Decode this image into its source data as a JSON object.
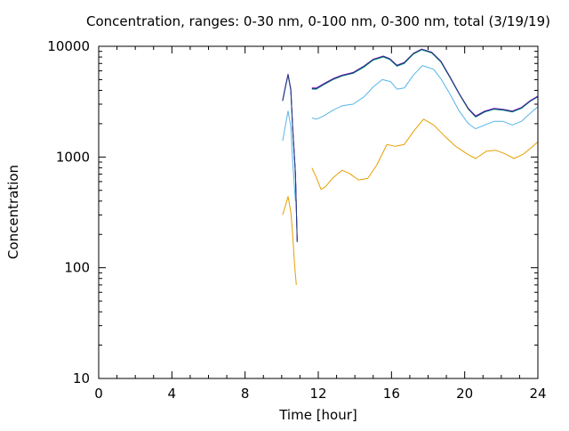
{
  "chart_data": {
    "type": "line",
    "title": "Concentration, ranges: 0-30 nm, 0-100 nm, 0-300 nm, total (3/19/19)",
    "xlabel": "Time [hour]",
    "ylabel": "Concentration",
    "xlim": [
      0,
      24
    ],
    "ylim": [
      10,
      10000
    ],
    "yscale": "log",
    "grid": false,
    "xticks": [
      0,
      4,
      8,
      12,
      16,
      20,
      24
    ],
    "xtick_labels": [
      "0",
      "4",
      "8",
      "12",
      "16",
      "20",
      "24"
    ],
    "yticks": [
      10,
      100,
      1000,
      10000
    ],
    "ytick_labels": [
      "10",
      "100",
      "1000",
      "10000"
    ],
    "series": [
      {
        "color": "#e69f00",
        "segments": [
          [
            [
              10.05,
              300
            ],
            [
              10.2,
              360
            ],
            [
              10.35,
              440
            ],
            [
              10.5,
              320
            ],
            [
              10.6,
              200
            ],
            [
              10.7,
              110
            ],
            [
              10.8,
              70
            ]
          ],
          [
            [
              11.65,
              800
            ],
            [
              11.9,
              650
            ],
            [
              12.15,
              510
            ],
            [
              12.4,
              540
            ],
            [
              12.8,
              650
            ],
            [
              13.3,
              760
            ],
            [
              13.7,
              710
            ],
            [
              14.2,
              620
            ],
            [
              14.7,
              640
            ],
            [
              15.2,
              850
            ],
            [
              15.75,
              1300
            ],
            [
              16.2,
              1250
            ],
            [
              16.7,
              1300
            ],
            [
              17.2,
              1700
            ],
            [
              17.75,
              2200
            ],
            [
              18.3,
              1950
            ],
            [
              18.9,
              1550
            ],
            [
              19.5,
              1250
            ],
            [
              20.2,
              1050
            ],
            [
              20.6,
              970
            ],
            [
              21.2,
              1130
            ],
            [
              21.7,
              1150
            ],
            [
              22.2,
              1070
            ],
            [
              22.7,
              970
            ],
            [
              23.2,
              1060
            ],
            [
              23.6,
              1200
            ],
            [
              24.0,
              1370
            ]
          ]
        ]
      },
      {
        "color": "#56b4e9",
        "segments": [
          [
            [
              10.05,
              1400
            ],
            [
              10.2,
              1900
            ],
            [
              10.35,
              2600
            ],
            [
              10.5,
              1900
            ],
            [
              10.6,
              900
            ],
            [
              10.75,
              400
            ]
          ],
          [
            [
              11.65,
              2250
            ],
            [
              11.9,
              2200
            ],
            [
              12.3,
              2350
            ],
            [
              12.8,
              2650
            ],
            [
              13.3,
              2900
            ],
            [
              13.9,
              3000
            ],
            [
              14.5,
              3500
            ],
            [
              15.0,
              4300
            ],
            [
              15.5,
              5000
            ],
            [
              15.95,
              4800
            ],
            [
              16.3,
              4100
            ],
            [
              16.7,
              4200
            ],
            [
              17.2,
              5500
            ],
            [
              17.7,
              6700
            ],
            [
              18.3,
              6200
            ],
            [
              18.7,
              5100
            ],
            [
              19.2,
              3700
            ],
            [
              19.7,
              2600
            ],
            [
              20.2,
              2000
            ],
            [
              20.6,
              1800
            ],
            [
              21.1,
              1950
            ],
            [
              21.6,
              2100
            ],
            [
              22.1,
              2100
            ],
            [
              22.6,
              1950
            ],
            [
              23.1,
              2100
            ],
            [
              23.6,
              2500
            ],
            [
              24.0,
              2850
            ]
          ]
        ]
      },
      {
        "color": "#009e73",
        "segments": [
          [
            [
              10.05,
              3200
            ],
            [
              10.2,
              4200
            ],
            [
              10.35,
              5500
            ],
            [
              10.5,
              4000
            ],
            [
              10.6,
              1800
            ],
            [
              10.75,
              700
            ],
            [
              10.85,
              170
            ]
          ],
          [
            [
              11.65,
              4100
            ],
            [
              11.9,
              4100
            ],
            [
              12.3,
              4500
            ],
            [
              12.8,
              5000
            ],
            [
              13.3,
              5400
            ],
            [
              13.9,
              5700
            ],
            [
              14.5,
              6500
            ],
            [
              15.0,
              7500
            ],
            [
              15.55,
              8000
            ],
            [
              15.9,
              7600
            ],
            [
              16.3,
              6600
            ],
            [
              16.7,
              7000
            ],
            [
              17.2,
              8500
            ],
            [
              17.65,
              9300
            ],
            [
              18.2,
              8700
            ],
            [
              18.7,
              7200
            ],
            [
              19.2,
              5200
            ],
            [
              19.7,
              3700
            ],
            [
              20.2,
              2700
            ],
            [
              20.6,
              2300
            ],
            [
              21.1,
              2550
            ],
            [
              21.6,
              2700
            ],
            [
              22.1,
              2650
            ],
            [
              22.6,
              2550
            ],
            [
              23.1,
              2750
            ],
            [
              23.6,
              3200
            ],
            [
              24.0,
              3500
            ]
          ]
        ]
      },
      {
        "color": "#9400d3",
        "segments": [
          [
            [
              10.05,
              3250
            ],
            [
              10.2,
              4300
            ],
            [
              10.35,
              5600
            ],
            [
              10.5,
              4100
            ],
            [
              10.6,
              1850
            ],
            [
              10.75,
              720
            ],
            [
              10.85,
              175
            ]
          ],
          [
            [
              11.65,
              4200
            ],
            [
              11.9,
              4200
            ],
            [
              12.3,
              4600
            ],
            [
              12.8,
              5100
            ],
            [
              13.3,
              5500
            ],
            [
              13.9,
              5800
            ],
            [
              14.5,
              6650
            ],
            [
              15.0,
              7650
            ],
            [
              15.55,
              8150
            ],
            [
              15.9,
              7750
            ],
            [
              16.3,
              6750
            ],
            [
              16.7,
              7150
            ],
            [
              17.2,
              8650
            ],
            [
              17.65,
              9450
            ],
            [
              18.2,
              8850
            ],
            [
              18.7,
              7350
            ],
            [
              19.2,
              5300
            ],
            [
              19.7,
              3750
            ],
            [
              20.2,
              2750
            ],
            [
              20.6,
              2350
            ],
            [
              21.1,
              2600
            ],
            [
              21.6,
              2750
            ],
            [
              22.1,
              2700
            ],
            [
              22.6,
              2600
            ],
            [
              23.1,
              2800
            ],
            [
              23.6,
              3250
            ],
            [
              24.0,
              3550
            ]
          ]
        ]
      },
      {
        "color": "#1f3f7f",
        "segments": [
          [
            [
              10.05,
              3220
            ],
            [
              10.2,
              4250
            ],
            [
              10.35,
              5550
            ],
            [
              10.5,
              4050
            ],
            [
              10.6,
              1820
            ],
            [
              10.75,
              710
            ],
            [
              10.85,
              172
            ]
          ],
          [
            [
              11.65,
              4150
            ],
            [
              11.9,
              4150
            ],
            [
              12.3,
              4550
            ],
            [
              12.8,
              5050
            ],
            [
              13.3,
              5450
            ],
            [
              13.9,
              5750
            ],
            [
              14.5,
              6600
            ],
            [
              15.0,
              7600
            ],
            [
              15.55,
              8100
            ],
            [
              15.9,
              7700
            ],
            [
              16.3,
              6700
            ],
            [
              16.7,
              7100
            ],
            [
              17.2,
              8600
            ],
            [
              17.65,
              9400
            ],
            [
              18.2,
              8800
            ],
            [
              18.7,
              7300
            ],
            [
              19.2,
              5250
            ],
            [
              19.7,
              3720
            ],
            [
              20.2,
              2720
            ],
            [
              20.6,
              2320
            ],
            [
              21.1,
              2580
            ],
            [
              21.6,
              2720
            ],
            [
              22.1,
              2680
            ],
            [
              22.6,
              2580
            ],
            [
              23.1,
              2780
            ],
            [
              23.6,
              3220
            ],
            [
              24.0,
              3520
            ]
          ]
        ]
      }
    ]
  }
}
